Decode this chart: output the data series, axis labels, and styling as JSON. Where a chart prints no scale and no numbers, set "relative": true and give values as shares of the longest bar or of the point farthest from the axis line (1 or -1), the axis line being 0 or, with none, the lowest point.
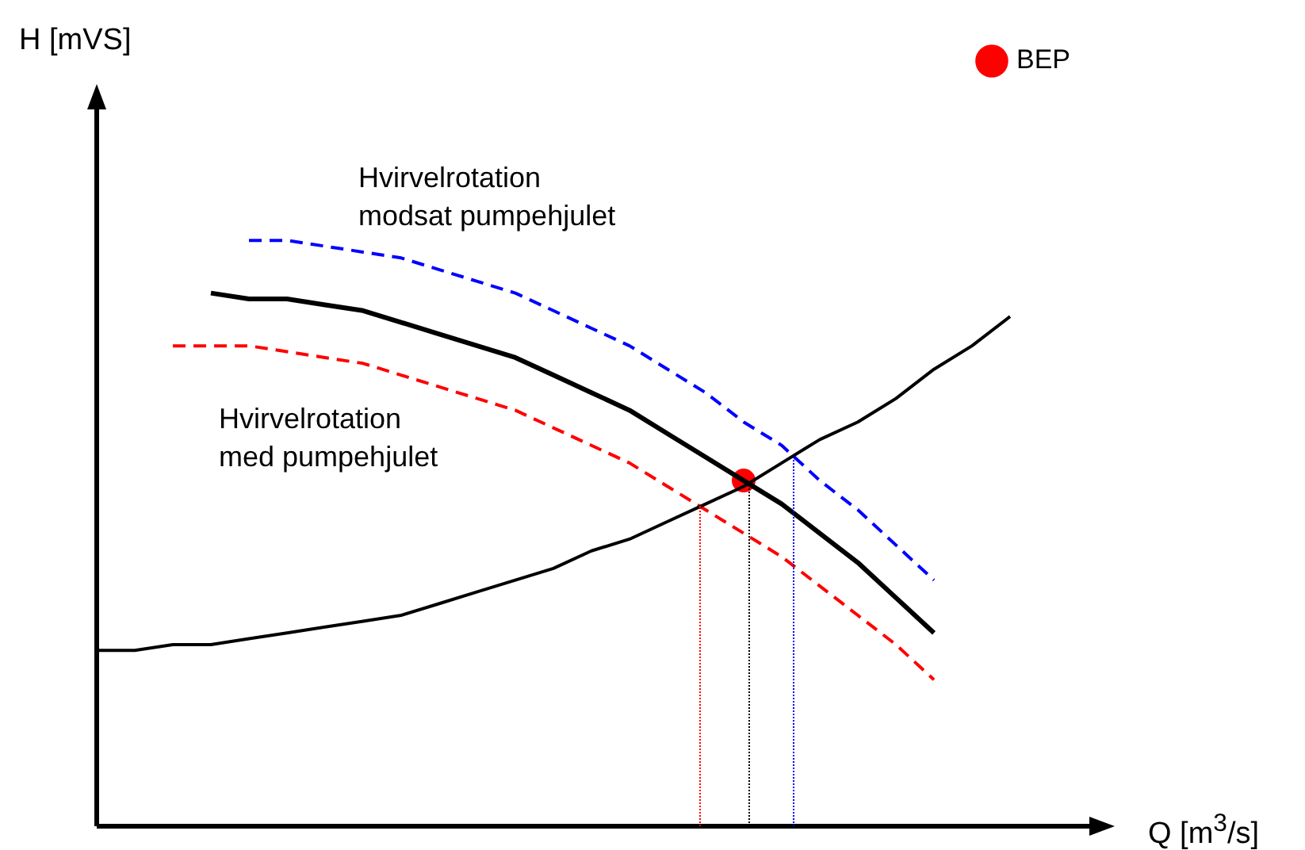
{
  "chart_data": {
    "type": "line",
    "relative": true,
    "xlabel": "Q [m$^{3}$/s]",
    "legend": "top right",
    "marker": "none",
    "categories": [
      null,
      null,
      null,
      null,
      null,
      null,
      null,
      null,
      null,
      null,
      null,
      null,
      null,
      null,
      null,
      null,
      null,
      null,
      null,
      null,
      null,
      null,
      null,
      null,
      null,
      null,
      null
    ],
    "annotations": [
      "Hvirvelrotation\nmodsat pumpehjulet",
      "Hvirvelrotation\nmed pumpehjulet",
      "H [mVS]"
    ],
    "series": [
      {
        "color": "#000000",
        "line_style": "solid",
        "values": [
          0.3,
          0.3,
          0.31,
          0.31,
          0.32,
          0.33,
          0.34,
          0.35,
          0.36,
          0.38,
          0.4,
          0.42,
          0.44,
          0.47,
          0.49,
          0.52,
          0.55,
          0.58,
          0.62,
          0.66,
          0.69,
          0.73,
          0.78,
          0.82,
          0.87,
          null,
          null
        ]
      },
      {
        "color": "#000000",
        "line_style": "solid",
        "values": [
          null,
          null,
          null,
          0.91,
          0.9,
          0.9,
          0.89,
          0.88,
          0.86,
          0.84,
          0.82,
          0.8,
          0.77,
          0.74,
          0.71,
          0.67,
          0.63,
          0.59,
          0.55,
          0.5,
          0.45,
          0.39,
          0.33,
          null,
          null,
          null,
          null
        ]
      },
      {
        "color": "#0000ff",
        "line_style": "dashed",
        "values": [
          null,
          null,
          null,
          null,
          1.0,
          1.0,
          0.99,
          0.98,
          0.97,
          0.95,
          0.93,
          0.91,
          0.88,
          0.85,
          0.82,
          0.78,
          0.74,
          0.69,
          0.65,
          0.59,
          0.54,
          0.48,
          0.42,
          null,
          null,
          null,
          null
        ]
      },
      {
        "color": "#ff0000",
        "line_style": "dashed",
        "values": [
          null,
          null,
          0.82,
          0.82,
          0.82,
          0.81,
          0.8,
          0.79,
          0.77,
          0.75,
          0.73,
          0.71,
          0.68,
          0.65,
          0.62,
          0.58,
          0.54,
          0.5,
          0.46,
          0.41,
          0.36,
          0.31,
          0.25,
          null,
          null,
          null,
          null
        ]
      },
      {
        "name": "BEP",
        "color": "#ff0000",
        "marker": "circle",
        "values": [
          null,
          null,
          null,
          null,
          null,
          null,
          null,
          null,
          null,
          null,
          null,
          null,
          null,
          null,
          null,
          null,
          null,
          0.59,
          null,
          null,
          null,
          null,
          null,
          null,
          null,
          null,
          null
        ]
      }
    ]
  }
}
